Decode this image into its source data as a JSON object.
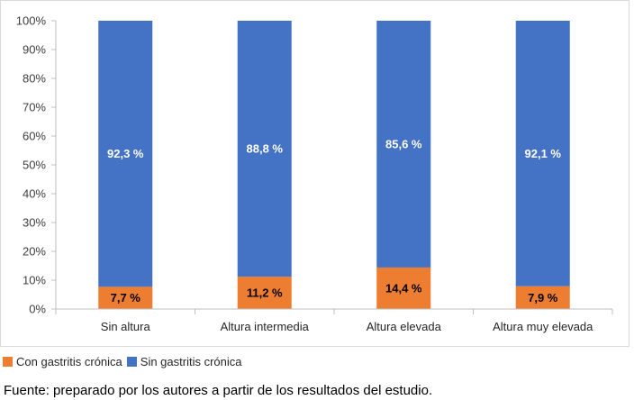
{
  "chart_data": {
    "type": "bar",
    "stacked": true,
    "categories": [
      "Sin altura",
      "Altura intermedia",
      "Altura elevada",
      "Altura muy elevada"
    ],
    "series": [
      {
        "name": "Con gastritis crónica",
        "color": "#ED7D31",
        "label_color": "#000000",
        "values": [
          7.7,
          11.2,
          14.4,
          7.9
        ],
        "labels": [
          "7,7 %",
          "11,2 %",
          "14,4 %",
          "7,9 %"
        ]
      },
      {
        "name": "Sin gastritis crónica",
        "color": "#4472C4",
        "label_color": "#FFFFFF",
        "values": [
          92.3,
          88.8,
          85.6,
          92.1
        ],
        "labels": [
          "92,3 %",
          "88,8 %",
          "85,6 %",
          "92,1 %"
        ]
      }
    ],
    "y_ticks": [
      "0%",
      "10%",
      "20%",
      "30%",
      "40%",
      "50%",
      "60%",
      "70%",
      "80%",
      "90%",
      "100%"
    ],
    "ylim": [
      0,
      100
    ],
    "grid": false,
    "legend_position": "bottom-left"
  },
  "source_note": "Fuente: preparado por los autores a partir de los resultados del estudio."
}
